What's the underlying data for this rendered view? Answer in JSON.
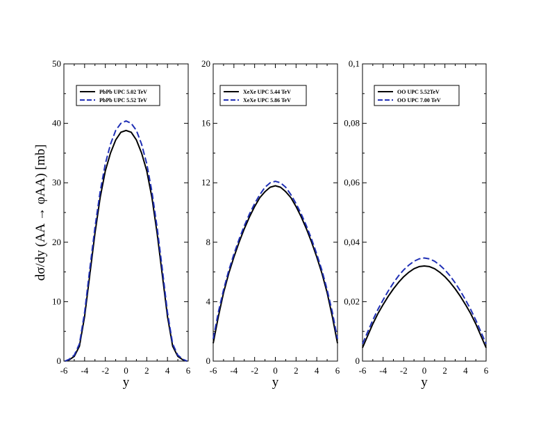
{
  "chart_data": {
    "type": "line",
    "ylabel": "dσ/dy (AA → φAA) [mb]",
    "panels": [
      {
        "xlabel": "y",
        "xlim": [
          -6,
          6
        ],
        "ylim": [
          0,
          50
        ],
        "xticks": [
          "-6",
          "-4",
          "-2",
          "0",
          "2",
          "4",
          "6"
        ],
        "yticks": [
          "0",
          "10",
          "20",
          "30",
          "40",
          "50"
        ],
        "series": [
          {
            "name": "PbPb UPC 5.02 TeV",
            "style": "solid",
            "color": "#000000",
            "x": [
              -5.9,
              -5.5,
              -5.0,
              -4.5,
              -4.0,
              -3.5,
              -3.0,
              -2.5,
              -2.0,
              -1.5,
              -1.0,
              -0.5,
              0.0,
              0.5,
              1.0,
              1.5,
              2.0,
              2.5,
              3.0,
              3.5,
              4.0,
              4.5,
              5.0,
              5.5,
              5.9
            ],
            "y": [
              0.0,
              0.2,
              0.8,
              2.5,
              7.5,
              14.5,
              21.5,
              27.5,
              32.0,
              35.0,
              37.2,
              38.5,
              38.8,
              38.5,
              37.2,
              35.0,
              32.0,
              27.5,
              21.5,
              14.5,
              7.5,
              2.5,
              0.8,
              0.2,
              0.0
            ]
          },
          {
            "name": "PbPb UPC 5.52 TeV",
            "style": "dashed",
            "color": "#1f2fb5",
            "x": [
              -5.9,
              -5.5,
              -5.0,
              -4.5,
              -4.0,
              -3.5,
              -3.0,
              -2.5,
              -2.0,
              -1.5,
              -1.0,
              -0.5,
              0.0,
              0.5,
              1.0,
              1.5,
              2.0,
              2.5,
              3.0,
              3.5,
              4.0,
              4.5,
              5.0,
              5.5,
              5.9
            ],
            "y": [
              0.0,
              0.3,
              1.0,
              2.9,
              8.2,
              15.5,
              22.5,
              28.5,
              33.2,
              36.5,
              38.8,
              40.0,
              40.4,
              40.0,
              38.8,
              36.5,
              33.2,
              28.5,
              22.5,
              15.5,
              8.2,
              2.9,
              1.0,
              0.3,
              0.0
            ]
          }
        ]
      },
      {
        "xlabel": "y",
        "xlim": [
          -6,
          6
        ],
        "ylim": [
          0,
          20
        ],
        "xticks": [
          "-6",
          "-4",
          "-2",
          "0",
          "2",
          "4",
          "6"
        ],
        "yticks": [
          "0",
          "4",
          "8",
          "12",
          "16",
          "20"
        ],
        "series": [
          {
            "name": "XeXe UPC 5.44 TeV",
            "style": "solid",
            "color": "#000000",
            "x": [
              -6.0,
              -5.5,
              -5.0,
              -4.5,
              -4.0,
              -3.5,
              -3.0,
              -2.5,
              -2.0,
              -1.5,
              -1.0,
              -0.5,
              0.0,
              0.5,
              1.0,
              1.5,
              2.0,
              2.5,
              3.0,
              3.5,
              4.0,
              4.5,
              5.0,
              5.5,
              6.0
            ],
            "y": [
              1.2,
              3.0,
              4.6,
              5.9,
              7.0,
              8.0,
              8.9,
              9.7,
              10.4,
              11.0,
              11.4,
              11.7,
              11.8,
              11.7,
              11.4,
              11.0,
              10.4,
              9.7,
              8.9,
              8.0,
              7.0,
              5.9,
              4.6,
              3.0,
              1.2
            ]
          },
          {
            "name": "XeXe UPC 5.86 TeV",
            "style": "dashed",
            "color": "#1f2fb5",
            "x": [
              -6.0,
              -5.5,
              -5.0,
              -4.5,
              -4.0,
              -3.5,
              -3.0,
              -2.5,
              -2.0,
              -1.5,
              -1.0,
              -0.5,
              0.0,
              0.5,
              1.0,
              1.5,
              2.0,
              2.5,
              3.0,
              3.5,
              4.0,
              4.5,
              5.0,
              5.5,
              6.0
            ],
            "y": [
              1.5,
              3.3,
              4.8,
              6.1,
              7.2,
              8.2,
              9.1,
              9.9,
              10.6,
              11.2,
              11.7,
              12.0,
              12.1,
              12.0,
              11.7,
              11.2,
              10.6,
              9.9,
              9.1,
              8.2,
              7.2,
              6.1,
              4.8,
              3.3,
              1.5
            ]
          }
        ]
      },
      {
        "xlabel": "y",
        "xlim": [
          -6,
          6
        ],
        "ylim": [
          0,
          0.1
        ],
        "xticks": [
          "-6",
          "-4",
          "-2",
          "0",
          "2",
          "4",
          "6"
        ],
        "yticks": [
          "0",
          "0,02",
          "0,04",
          "0,06",
          "0,08",
          "0,1"
        ],
        "series": [
          {
            "name": "OO UPC 5.52TeV",
            "style": "solid",
            "color": "#000000",
            "x": [
              -6.0,
              -5.5,
              -5.0,
              -4.5,
              -4.0,
              -3.5,
              -3.0,
              -2.5,
              -2.0,
              -1.5,
              -1.0,
              -0.5,
              0.0,
              0.5,
              1.0,
              1.5,
              2.0,
              2.5,
              3.0,
              3.5,
              4.0,
              4.5,
              5.0,
              5.5,
              6.0
            ],
            "y": [
              0.0045,
              0.0085,
              0.0125,
              0.016,
              0.019,
              0.0218,
              0.0243,
              0.0265,
              0.0284,
              0.0299,
              0.0311,
              0.0318,
              0.032,
              0.0318,
              0.0311,
              0.0299,
              0.0284,
              0.0265,
              0.0243,
              0.0218,
              0.019,
              0.016,
              0.0125,
              0.0085,
              0.0045
            ]
          },
          {
            "name": "OO UPC 7.00 TeV",
            "style": "dashed",
            "color": "#1f2fb5",
            "x": [
              -6.0,
              -5.5,
              -5.0,
              -4.5,
              -4.0,
              -3.5,
              -3.0,
              -2.5,
              -2.0,
              -1.5,
              -1.0,
              -0.5,
              0.0,
              0.5,
              1.0,
              1.5,
              2.0,
              2.5,
              3.0,
              3.5,
              4.0,
              4.5,
              5.0,
              5.5,
              6.0
            ],
            "y": [
              0.0058,
              0.0098,
              0.0138,
              0.0174,
              0.0206,
              0.0236,
              0.0263,
              0.0287,
              0.0307,
              0.0323,
              0.0336,
              0.0344,
              0.0347,
              0.0344,
              0.0336,
              0.0323,
              0.0307,
              0.0287,
              0.0263,
              0.0236,
              0.0206,
              0.0174,
              0.0138,
              0.0098,
              0.0058
            ]
          }
        ]
      }
    ]
  }
}
